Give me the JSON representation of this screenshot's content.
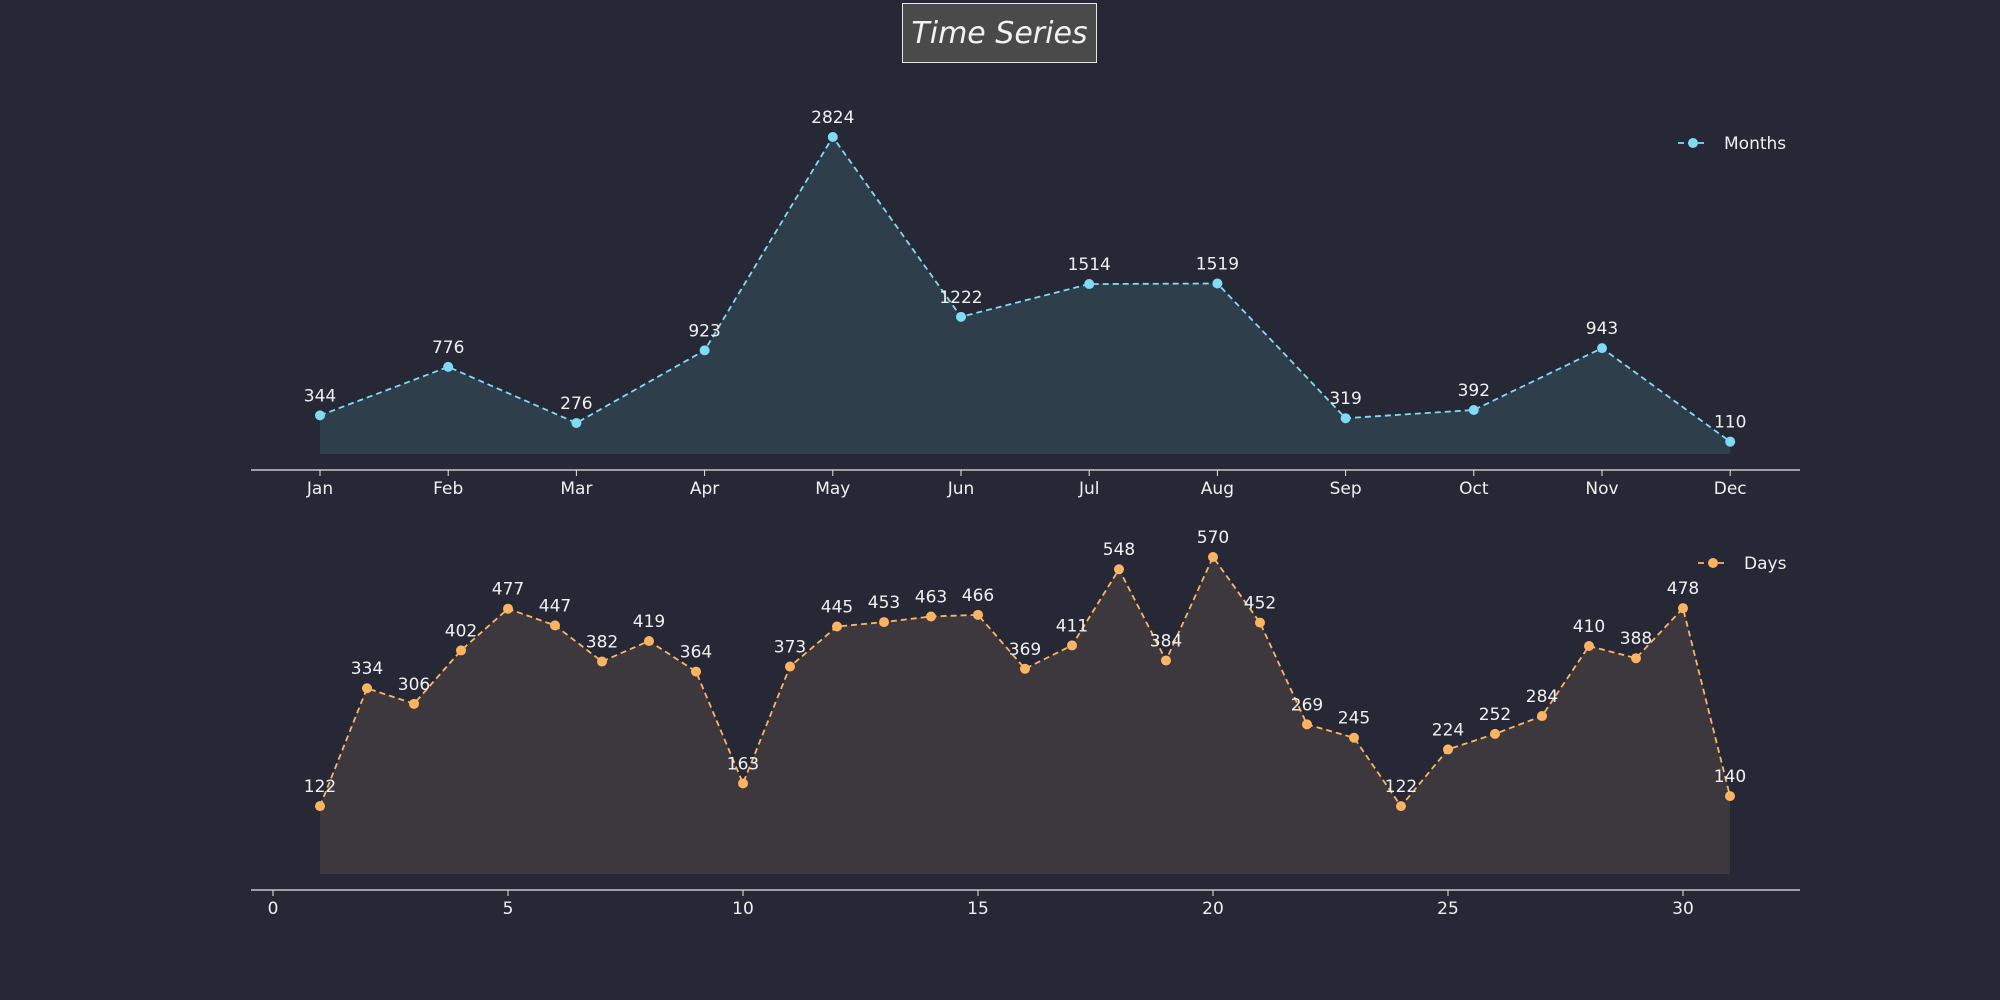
{
  "title": "Time Series",
  "colors": {
    "background": "#262935",
    "months": "#7fdbf5",
    "days": "#fdb462",
    "months_fill": "#2e3e4b",
    "days_fill": "#3d383e",
    "text": "#f0f0f0",
    "axis": "#e6e6e6"
  },
  "chart_data": [
    {
      "type": "area",
      "categories": [
        "Jan",
        "Feb",
        "Mar",
        "Apr",
        "May",
        "Jun",
        "Jul",
        "Aug",
        "Sep",
        "Oct",
        "Nov",
        "Dec"
      ],
      "series": [
        {
          "name": "Months",
          "values": [
            344,
            776,
            276,
            923,
            2824,
            1222,
            1514,
            1519,
            319,
            392,
            943,
            110
          ]
        }
      ],
      "line_style": "dashed",
      "markers": "circle",
      "data_labels": true,
      "legend": "top-right",
      "grid": false
    },
    {
      "type": "area",
      "x": [
        1,
        2,
        3,
        4,
        5,
        6,
        7,
        8,
        9,
        10,
        11,
        12,
        13,
        14,
        15,
        16,
        17,
        18,
        19,
        20,
        21,
        22,
        23,
        24,
        25,
        26,
        27,
        28,
        29,
        30,
        31
      ],
      "series": [
        {
          "name": "Days",
          "values": [
            122,
            334,
            306,
            402,
            477,
            447,
            382,
            419,
            364,
            163,
            373,
            445,
            453,
            463,
            466,
            369,
            411,
            548,
            384,
            570,
            452,
            269,
            245,
            122,
            224,
            252,
            284,
            410,
            388,
            478,
            140
          ]
        }
      ],
      "xticks": [
        0,
        5,
        10,
        15,
        20,
        25,
        30
      ],
      "xlim": [
        0,
        32.5
      ],
      "line_style": "dashed",
      "markers": "circle",
      "data_labels": true,
      "legend": "top-right",
      "grid": false
    }
  ]
}
